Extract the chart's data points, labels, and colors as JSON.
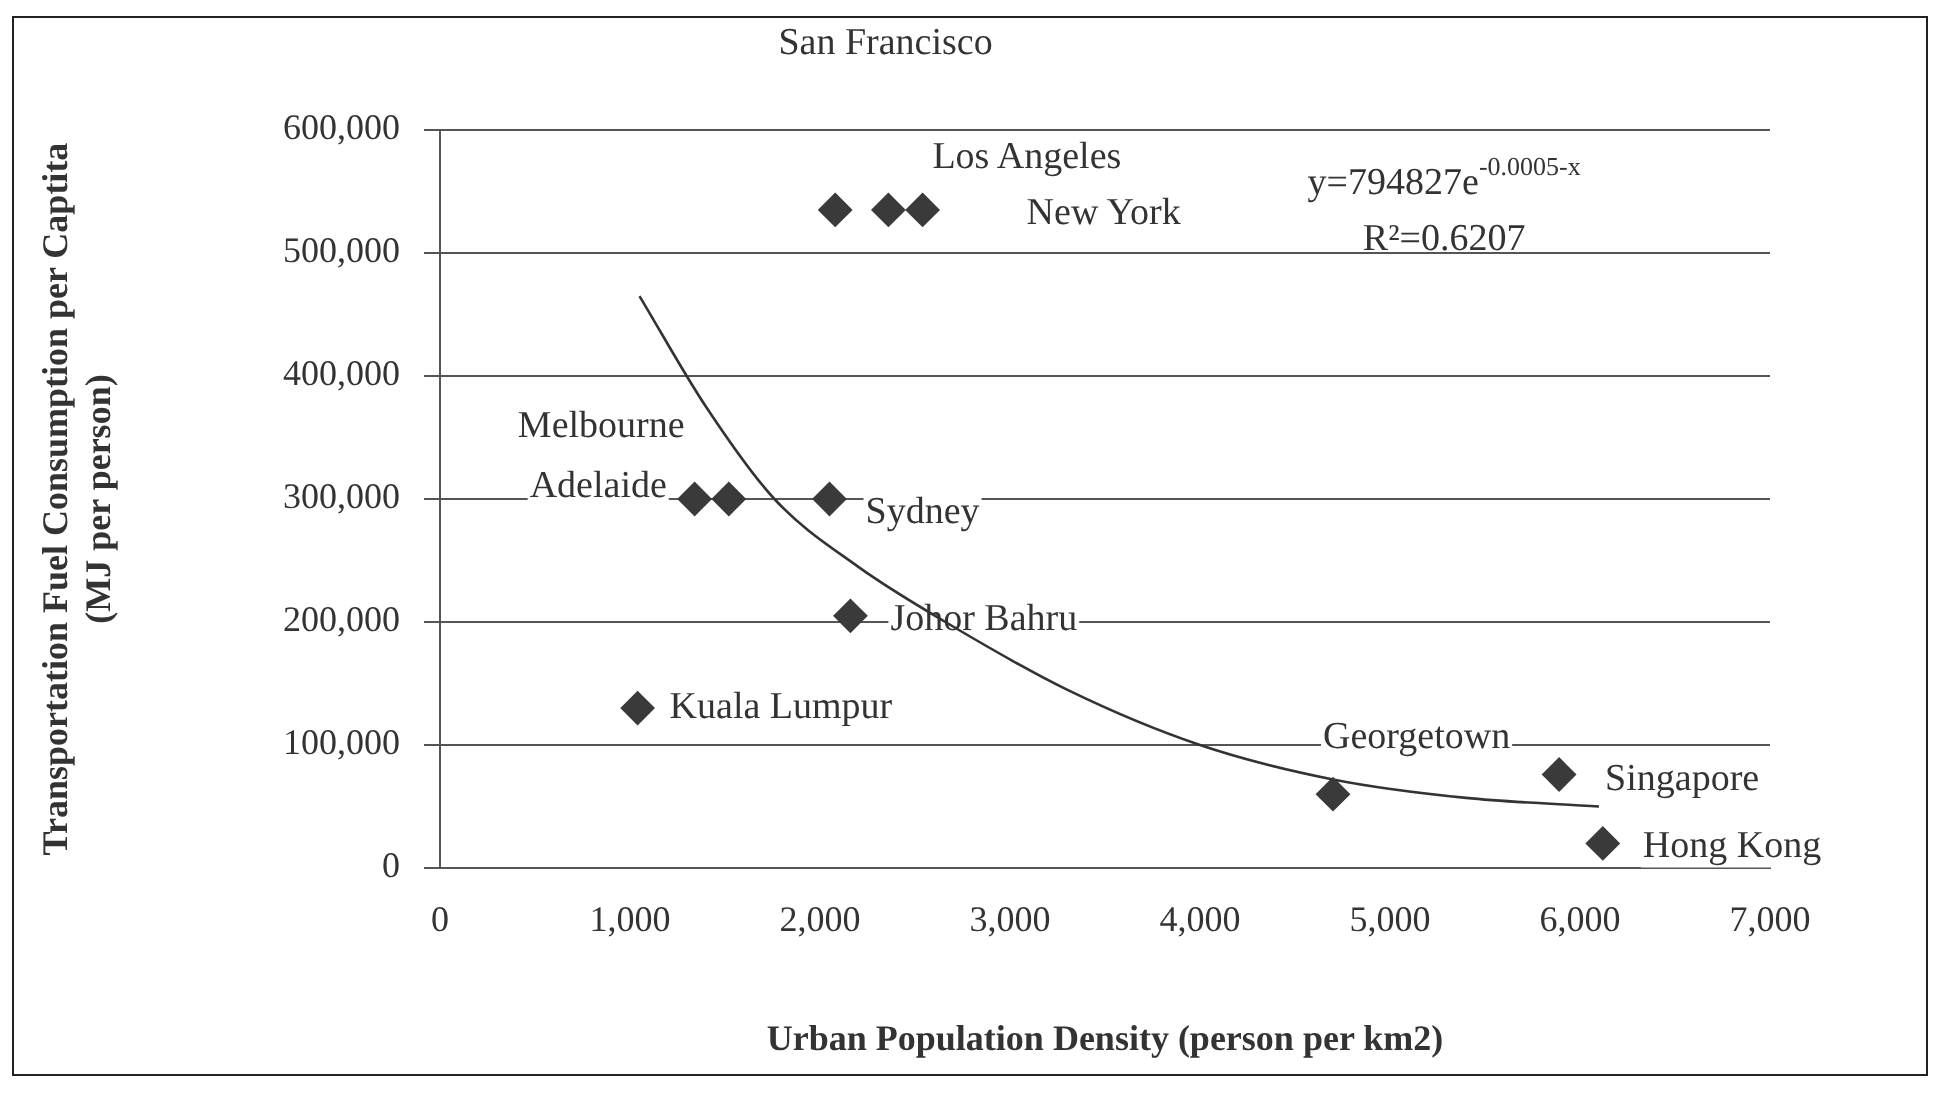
{
  "chart_data": {
    "type": "scatter",
    "xlabel": "Urban Population Density (person per km2)",
    "ylabel": "Transportation Fuel Consumption per Captita (MJ per person)",
    "xlim": [
      0,
      7000
    ],
    "xticks": [
      {
        "value": 0,
        "label": "0"
      },
      {
        "value": 1000,
        "label": "1,000"
      },
      {
        "value": 2000,
        "label": "2,000"
      },
      {
        "value": 3000,
        "label": "3,000"
      },
      {
        "value": 4000,
        "label": "4,000"
      },
      {
        "value": 5000,
        "label": "5,000"
      },
      {
        "value": 6000,
        "label": "6,000"
      },
      {
        "value": 7000,
        "label": "7,000"
      }
    ],
    "ylim": [
      0,
      600000
    ],
    "yticks": [
      {
        "value": 0,
        "label": "0"
      },
      {
        "value": 100000,
        "label": "100,000"
      },
      {
        "value": 200000,
        "label": "200,000"
      },
      {
        "value": 300000,
        "label": "300,000"
      },
      {
        "value": 400000,
        "label": "400,000"
      },
      {
        "value": 500000,
        "label": "500,000"
      },
      {
        "value": 600000,
        "label": "600,000"
      }
    ],
    "grid": "y",
    "legend": false,
    "marker": "diamond",
    "series": [
      {
        "type": "scatter",
        "color": "#3a3a3a",
        "x": [
          2080,
          2360,
          2540,
          1340,
          1520,
          2050,
          2160,
          1040,
          4700,
          5890,
          6120
        ],
        "values": [
          535000,
          535000,
          535000,
          300000,
          300000,
          300000,
          205000,
          130000,
          60000,
          76000,
          20000
        ]
      },
      {
        "type": "line",
        "color": "#333333",
        "marker": "none",
        "x": [
          1050,
          1400,
          1760,
          2200,
          2660,
          3300,
          4000,
          4700,
          5400,
          6100
        ],
        "values": [
          465000,
          375000,
          300000,
          245000,
          200000,
          145000,
          100000,
          72000,
          57000,
          50000
        ]
      }
    ],
    "annotations": [
      "y=794827e$^{-0.0005-x}$",
      "R²=0.6207",
      "San Francisco",
      {
        "text": "Los Angeles",
        "x": 2360,
        "y": 535000
      },
      {
        "text": "New York",
        "x": 2540,
        "y": 535000
      },
      {
        "text": "Melbourne",
        "x": 1340,
        "y": 300000
      },
      {
        "text": "Adelaide",
        "x": 1520,
        "y": 300000
      },
      {
        "text": "Sydney",
        "x": 2050,
        "y": 300000
      },
      {
        "text": "Johor Bahru",
        "x": 2160,
        "y": 205000
      },
      {
        "text": "Kuala Lumpur",
        "x": 1040,
        "y": 130000
      },
      {
        "text": "Georgetown",
        "x": 4700,
        "y": 60000
      },
      {
        "text": "Singapore",
        "x": 5890,
        "y": 76000
      },
      {
        "text": "Hong Kong",
        "x": 6120,
        "y": 20000
      }
    ]
  }
}
